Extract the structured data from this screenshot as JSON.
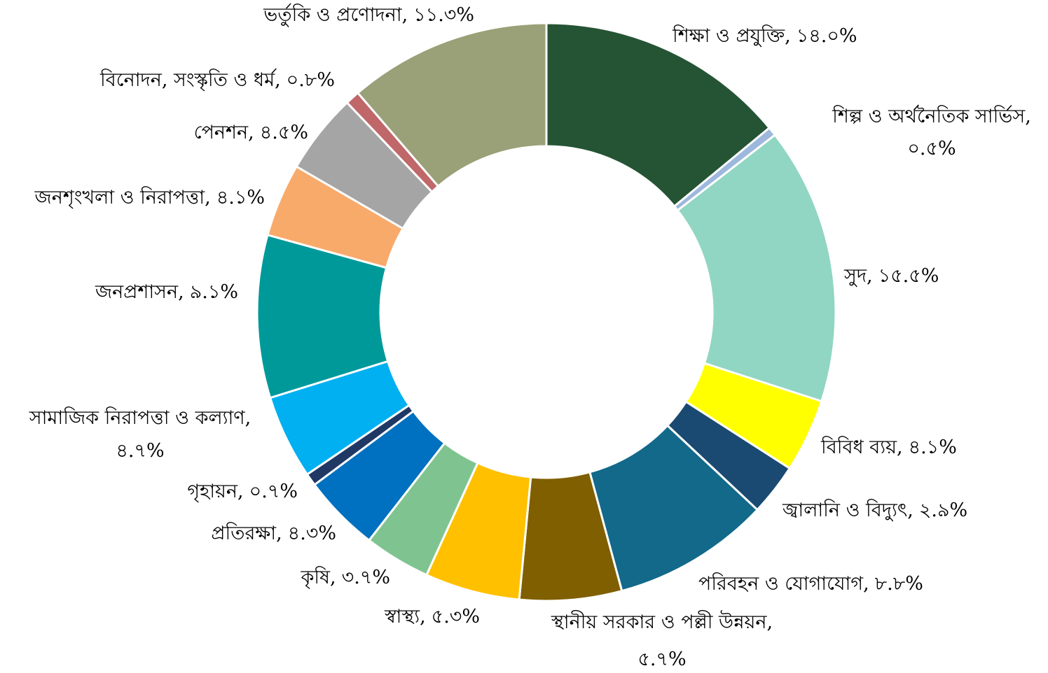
{
  "chart_data": {
    "type": "donut",
    "categories": [
      "শিক্ষা ও প্রযুক্তি",
      "শিল্প ও অর্থনৈতিক সার্ভিস",
      "সুদ",
      "বিবিধ ব্যয়",
      "জ্বালানি ও বিদ্যুৎ",
      "পরিবহন ও যোগাযোগ",
      "স্থানীয় সরকার ও পল্লী উন্নয়ন",
      "স্বাস্থ্য",
      "কৃষি",
      "প্রতিরক্ষা",
      "গৃহায়ন",
      "সামাজিক নিরাপত্তা ও কল্যাণ",
      "জনপ্রশাসন",
      "জনশৃংখলা ও নিরাপত্তা",
      "পেনশন",
      "বিনোদন, সংস্কৃতি ও ধর্ম",
      "ভর্তুকি ও প্রণোদনা"
    ],
    "values": [
      14.0,
      0.5,
      15.5,
      4.1,
      2.9,
      8.8,
      5.7,
      5.3,
      3.7,
      4.3,
      0.7,
      4.7,
      9.1,
      4.1,
      4.5,
      0.8,
      11.3
    ],
    "value_labels": [
      "১৪.০%",
      "০.৫%",
      "১৫.৫%",
      "৪.১%",
      "২.৯%",
      "৮.৮%",
      "৫.৭%",
      "৫.৩%",
      "৩.৭%",
      "৪.৩%",
      "০.৭%",
      "৪.৭%",
      "৯.১%",
      "৪.১%",
      "৪.৫%",
      "০.৮%",
      "১১.৩%"
    ],
    "label_separator": ",",
    "colors": [
      "#255434",
      "#9db8dc",
      "#90d6c3",
      "#ffff00",
      "#1a4a72",
      "#12698a",
      "#7f5f00",
      "#ffc000",
      "#7fc490",
      "#0070c0",
      "#1f3864",
      "#00b0f0",
      "#009999",
      "#f8aa6b",
      "#a5a5a5",
      "#c0676a",
      "#9aa077"
    ]
  }
}
